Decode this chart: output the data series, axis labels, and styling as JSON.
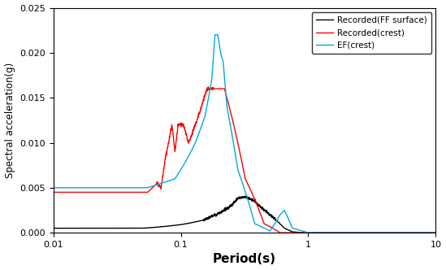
{
  "title": "",
  "xlabel": "Period(s)",
  "ylabel": "Spectral acceleration(g)",
  "xlim": [
    0.01,
    10
  ],
  "ylim": [
    0,
    0.025
  ],
  "yticks": [
    0,
    0.005,
    0.01,
    0.015,
    0.02,
    0.025
  ],
  "legend_entries": [
    "Recorded(FF surface)",
    "Recorded(crest)",
    "EF(crest)"
  ],
  "line_colors": [
    "#000000",
    "#ff0000",
    "#00aadd"
  ],
  "background_color": "#ffffff",
  "figsize": [
    5.49,
    3.32
  ],
  "dpi": 100
}
